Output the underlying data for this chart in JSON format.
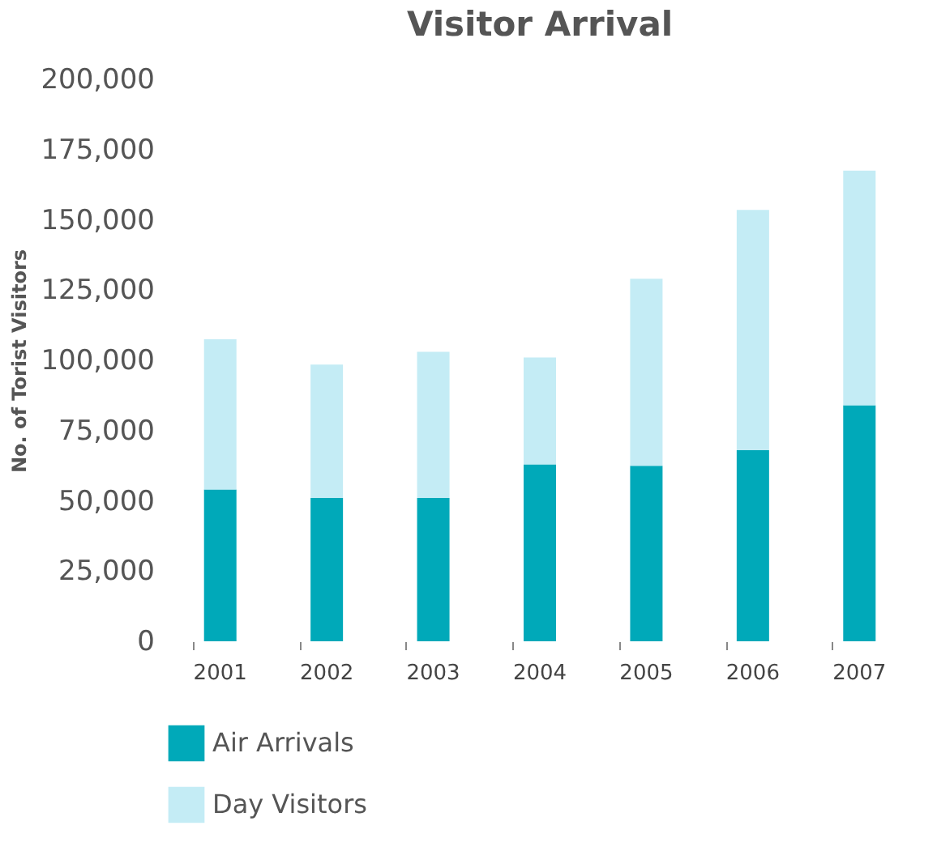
{
  "chart_data": {
    "type": "bar",
    "title": "Visitor Arrival",
    "ylabel": "No. of Torist Visitors",
    "categories": [
      "2001",
      "2002",
      "2003",
      "2004",
      "2005",
      "2006",
      "2007"
    ],
    "stacked": true,
    "series": [
      {
        "name": "Air Arrivals",
        "color": "#00a9b9",
        "values": [
          54000,
          51000,
          51000,
          63000,
          62500,
          68000,
          84000
        ]
      },
      {
        "name": "Day Visitors",
        "color": "#c4ecf5",
        "values": [
          53500,
          47500,
          52000,
          38000,
          66500,
          85500,
          83500
        ]
      }
    ],
    "ylim": [
      0,
      200000
    ],
    "yticks": [
      0,
      {
        "value": 25000,
        "label": "25,000"
      },
      {
        "value": 50000,
        "label": "50,000"
      },
      {
        "value": 75000,
        "label": "75,000"
      },
      {
        "value": 100000,
        "label": "100,000"
      },
      {
        "value": 125000,
        "label": "125,000"
      },
      {
        "value": 150000,
        "label": "150,000"
      },
      {
        "value": 175000,
        "label": "175,000"
      },
      {
        "value": 200000,
        "label": "200,000"
      }
    ],
    "grid": false,
    "legend": "bottom left"
  }
}
